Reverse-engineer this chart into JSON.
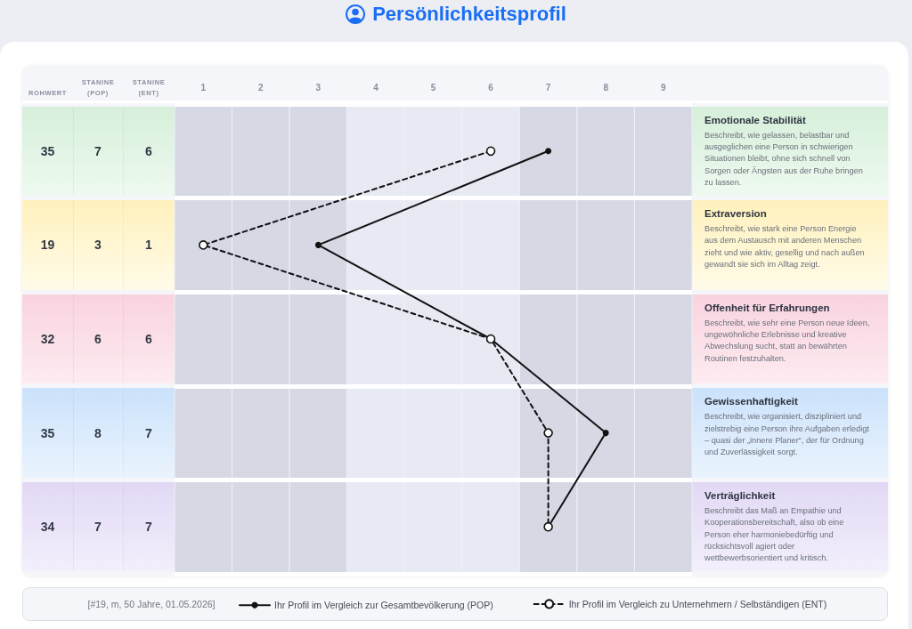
{
  "chart_data": {
    "type": "line",
    "orientation": "horizontal",
    "title": "Persönlichkeitsprofil",
    "categories": [
      "Emotionale Stabilität",
      "Extraversion",
      "Offenheit für Erfahrungen",
      "Gewissenhaftigkeit",
      "Verträglichkeit"
    ],
    "series": [
      {
        "name": "Ihr Profil im Vergleich zur Gesamtbevölkerung (POP)",
        "color": "#111111",
        "values": [
          7,
          3,
          6,
          8,
          7
        ],
        "line_style": "solid"
      },
      {
        "name": "Ihr Profil im Vergleich zu Unternehmern / Selbständigen (ENT)",
        "color": "#111111",
        "values": [
          6,
          1,
          6,
          7,
          7
        ],
        "line_style": "dashed"
      }
    ],
    "xlim": [
      0.5,
      9.5
    ],
    "xticks": [
      1,
      2,
      3,
      4,
      5,
      6,
      7,
      8,
      9
    ],
    "bands": [
      {
        "axis": "x",
        "from": 0.5,
        "to": 1.5,
        "color": "#d6d8e4"
      },
      {
        "axis": "x",
        "from": 1.5,
        "to": 2.5,
        "color": "#d6d8e4"
      },
      {
        "axis": "x",
        "from": 2.5,
        "to": 3.5,
        "color": "#d6d8e4"
      },
      {
        "axis": "x",
        "from": 3.5,
        "to": 4.5,
        "color": "#e8eaf3"
      },
      {
        "axis": "x",
        "from": 4.5,
        "to": 5.5,
        "color": "#e8eaf3"
      },
      {
        "axis": "x",
        "from": 5.5,
        "to": 6.5,
        "color": "#e8eaf3"
      },
      {
        "axis": "x",
        "from": 6.5,
        "to": 7.5,
        "color": "#d6d8e4"
      },
      {
        "axis": "x",
        "from": 7.5,
        "to": 8.5,
        "color": "#d6d8e4"
      },
      {
        "axis": "x",
        "from": 8.5,
        "to": 9.5,
        "color": "#d6d8e4"
      }
    ],
    "grid": "y",
    "legend": "bottom",
    "marker": "circle",
    "data_labels": true,
    "annotations": [
      "ROHWERT",
      "STANINE (POP)",
      "STANINE (ENT)",
      "35",
      "19",
      "32",
      "35",
      "34",
      "Beschreibt, wie gelassen, belastbar und ausgeglichen eine Person in schwierigen Situationen bleibt, ohne sich schnell von Sorgen oder Ängsten aus der Ruhe bringen zu lassen.",
      "Beschreibt, wie stark eine Person Energie aus dem Austausch mit anderen Menschen zieht und wie aktiv, gesellig und nach außen gewandt sie sich im Alltag zeigt.",
      "Beschreibt, wie sehr eine Person neue Ideen, ungewöhnliche Erlebnisse und kreative Abwechslung sucht, statt an bewährten Routinen festzuhalten.",
      "Beschreibt, wie organisiert, diszipliniert und zielstrebig eine Person ihre Aufgaben erledigt – quasi der „innere Planer“, der für Ordnung und Zuverlässigkeit sorgt.",
      "Beschreibt das Maß an Empathie und Kooperationsbereitschaft, also ob eine Person eher harmoniebedürftig und rücksichtsvoll agiert oder wettbewerbsorientiert und kritisch.",
      "[#19, m, 50 Jahre, 01.05.2026]"
    ]
  }
}
